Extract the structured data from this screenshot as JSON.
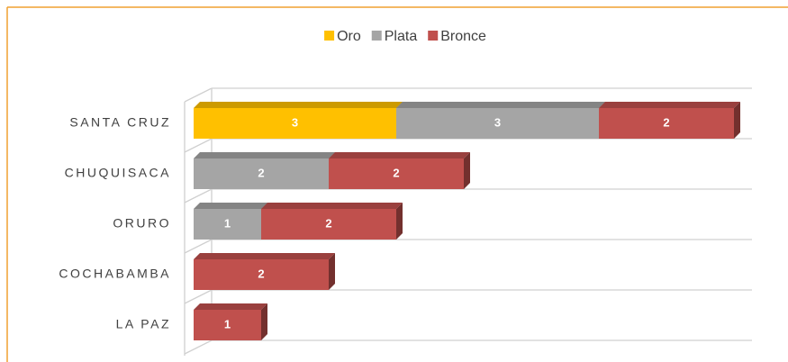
{
  "chart_data": {
    "type": "bar",
    "orientation": "horizontal",
    "stacked": true,
    "categories": [
      "SANTA CRUZ",
      "CHUQUISACA",
      "ORURO",
      "COCHABAMBA",
      "LA PAZ"
    ],
    "series": [
      {
        "name": "Oro",
        "color": "#FFC000",
        "values": [
          3,
          null,
          null,
          null,
          null
        ]
      },
      {
        "name": "Plata",
        "color": "#A5A5A5",
        "values": [
          3,
          2,
          1,
          null,
          null
        ]
      },
      {
        "name": "Bronce",
        "color": "#C0504D",
        "values": [
          2,
          2,
          2,
          2,
          1
        ]
      }
    ],
    "legend": "top",
    "grid": true
  }
}
